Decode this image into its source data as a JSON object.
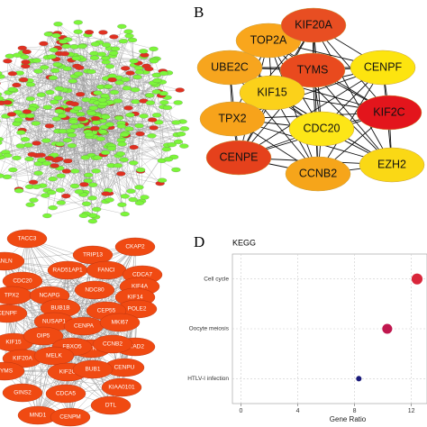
{
  "panel_b": {
    "label": "B",
    "nodes": [
      {
        "label": "TOP2A",
        "color": "#f9a61c"
      },
      {
        "label": "KIF20A",
        "color": "#e84e22"
      },
      {
        "label": "UBE2C",
        "color": "#f7a51e"
      },
      {
        "label": "TYMS",
        "color": "#e94a1e"
      },
      {
        "label": "CENPF",
        "color": "#fde40f"
      },
      {
        "label": "KIF15",
        "color": "#fbd11a"
      },
      {
        "label": "TPX2",
        "color": "#f7a31b"
      },
      {
        "label": "CDC20",
        "color": "#fde617"
      },
      {
        "label": "KIF2C",
        "color": "#e3151c"
      },
      {
        "label": "CENPE",
        "color": "#e5411c"
      },
      {
        "label": "CCNB2",
        "color": "#f6a51a"
      },
      {
        "label": "EZH2",
        "color": "#fad815"
      }
    ]
  },
  "panel_c": {
    "node_color": "#f04a12",
    "nodes": [
      "TACC3",
      "TRIP13",
      "CKAP2",
      "ANLN",
      "RAD51AP1",
      "FANCI",
      "CDCA7",
      "CDC20",
      "KIF4A",
      "NDC80",
      "KIF14",
      "TPX2",
      "NCAPG",
      "POLE2",
      "BUB1B",
      "CEP55",
      "CENPF",
      "NUSAP1",
      "CENPA",
      "MKI67",
      "KIF15",
      "OIP5",
      "TTK",
      "ATAD2",
      "KIF20A",
      "FBXO5",
      "CCNB2",
      "MELK",
      "KIF2C",
      "CENPU",
      "BUB1",
      "TYMS",
      "KIAA0101",
      "GINS2",
      "CDCA5",
      "DTL",
      "MND1",
      "CENPM"
    ]
  },
  "chart_data": {
    "type": "scatter",
    "panel_label": "D",
    "title": "KEGG",
    "categories": [
      "Cell cycle",
      "Oocyte meiosis",
      "HTLV-I infection"
    ],
    "values": [
      12.4,
      10.3,
      8.3
    ],
    "sizes": [
      12,
      10,
      3
    ],
    "colors": [
      "#d9263a",
      "#c0174e",
      "#1a1a7a"
    ],
    "xlabel": "Gene Ratio",
    "xlim": [
      -0.6,
      13.1
    ],
    "xticks": [
      0,
      4,
      8,
      12
    ],
    "grid": true
  }
}
